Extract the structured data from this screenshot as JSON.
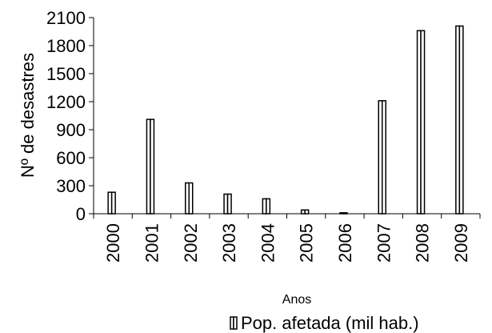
{
  "chart_data": {
    "type": "bar",
    "categories": [
      "2000",
      "2001",
      "2002",
      "2003",
      "2004",
      "2005",
      "2006",
      "2007",
      "2008",
      "2009"
    ],
    "series": [
      {
        "name": "Pop. afetada (mil hab.)",
        "values": [
          230,
          1010,
          330,
          210,
          160,
          40,
          10,
          1210,
          1960,
          2010
        ]
      }
    ],
    "xlabel": "Anos",
    "ylabel": "Nº de desastres",
    "ylim": [
      0,
      2100
    ],
    "yticks": [
      "0",
      "300",
      "600",
      "900",
      "1200",
      "1500",
      "1800",
      "2100"
    ],
    "grid": false,
    "legend_position": "bottom",
    "colors": {
      "bar_outline": "#000000",
      "bar_fill": "#ffffff",
      "axis": "#000000"
    }
  }
}
